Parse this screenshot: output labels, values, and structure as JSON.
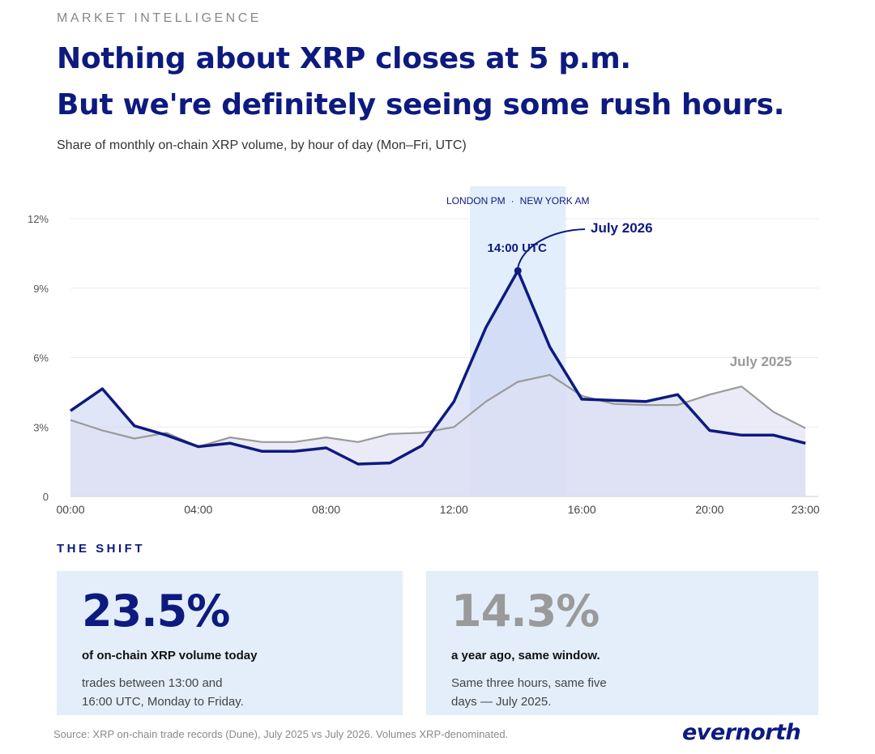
{
  "header": {
    "eyebrow": "MARKET INTELLIGENCE",
    "title_line1": "Nothing about XRP closes at 5 p.m.",
    "title_line2": "But we're definitely seeing some rush hours.",
    "subtitle": "Share of monthly on-chain XRP volume, by hour of day (Mon–Fri, UTC)"
  },
  "chart_data": {
    "type": "line",
    "x": [
      0,
      1,
      2,
      3,
      4,
      5,
      6,
      7,
      8,
      9,
      10,
      11,
      12,
      13,
      14,
      15,
      16,
      17,
      18,
      19,
      20,
      21,
      22,
      23
    ],
    "xticks": [
      {
        "x": 0,
        "label": "00:00"
      },
      {
        "x": 4,
        "label": "04:00"
      },
      {
        "x": 8,
        "label": "08:00"
      },
      {
        "x": 12,
        "label": "12:00"
      },
      {
        "x": 16,
        "label": "16:00"
      },
      {
        "x": 20,
        "label": "20:00"
      },
      {
        "x": 23,
        "label": "23:00"
      }
    ],
    "yticks": [
      {
        "y": 0,
        "label": "0"
      },
      {
        "y": 3,
        "label": "3%"
      },
      {
        "y": 6,
        "label": "6%"
      },
      {
        "y": 9,
        "label": "9%"
      },
      {
        "y": 12,
        "label": "12%"
      }
    ],
    "xlim": [
      0,
      23.4
    ],
    "ylim": [
      0,
      12
    ],
    "grid": true,
    "series": [
      {
        "name": "July 2025",
        "color": "#9a9a9a",
        "values": [
          3.3,
          2.85,
          2.5,
          2.75,
          2.15,
          2.55,
          2.35,
          2.35,
          2.55,
          2.35,
          2.7,
          2.75,
          3.0,
          4.1,
          4.95,
          5.25,
          4.35,
          4.0,
          3.95,
          3.95,
          4.4,
          4.75,
          3.65,
          2.95
        ]
      },
      {
        "name": "July 2026",
        "color": "#0d1a7f",
        "values": [
          3.7,
          4.65,
          3.05,
          2.65,
          2.15,
          2.3,
          1.95,
          1.95,
          2.1,
          1.4,
          1.45,
          2.2,
          4.1,
          7.3,
          9.75,
          6.45,
          4.2,
          4.15,
          4.1,
          4.4,
          2.85,
          2.65,
          2.65,
          2.3
        ]
      }
    ],
    "highlight_band": {
      "x_start": 12.5,
      "x_end": 15.5,
      "label_left": "LONDON PM",
      "separator": "·",
      "label_right": "NEW YORK AM"
    },
    "annotation": {
      "x": 14,
      "y": 9.75,
      "label": "14:00 UTC"
    },
    "colors": {
      "band": "#e3eefc",
      "fill_2026": "#c7d2f0",
      "fill_2025": "#dfe1f2",
      "grid": "#ebebeb"
    }
  },
  "shift": {
    "label": "THE SHIFT",
    "card_now": {
      "value": "23.5%",
      "lead": "of on-chain XRP volume today",
      "detail_line1": "trades between 13:00 and",
      "detail_line2": "16:00 UTC, Monday to Friday."
    },
    "card_prev": {
      "value": "14.3%",
      "lead": "a year ago, same window.",
      "detail_line1": "Same three hours, same five",
      "detail_line2": "days — July 2025."
    }
  },
  "footer": {
    "source": "Source: XRP on-chain trade records (Dune), July 2025 vs July 2026. Volumes XRP-denominated.",
    "logo": "evernorth"
  }
}
